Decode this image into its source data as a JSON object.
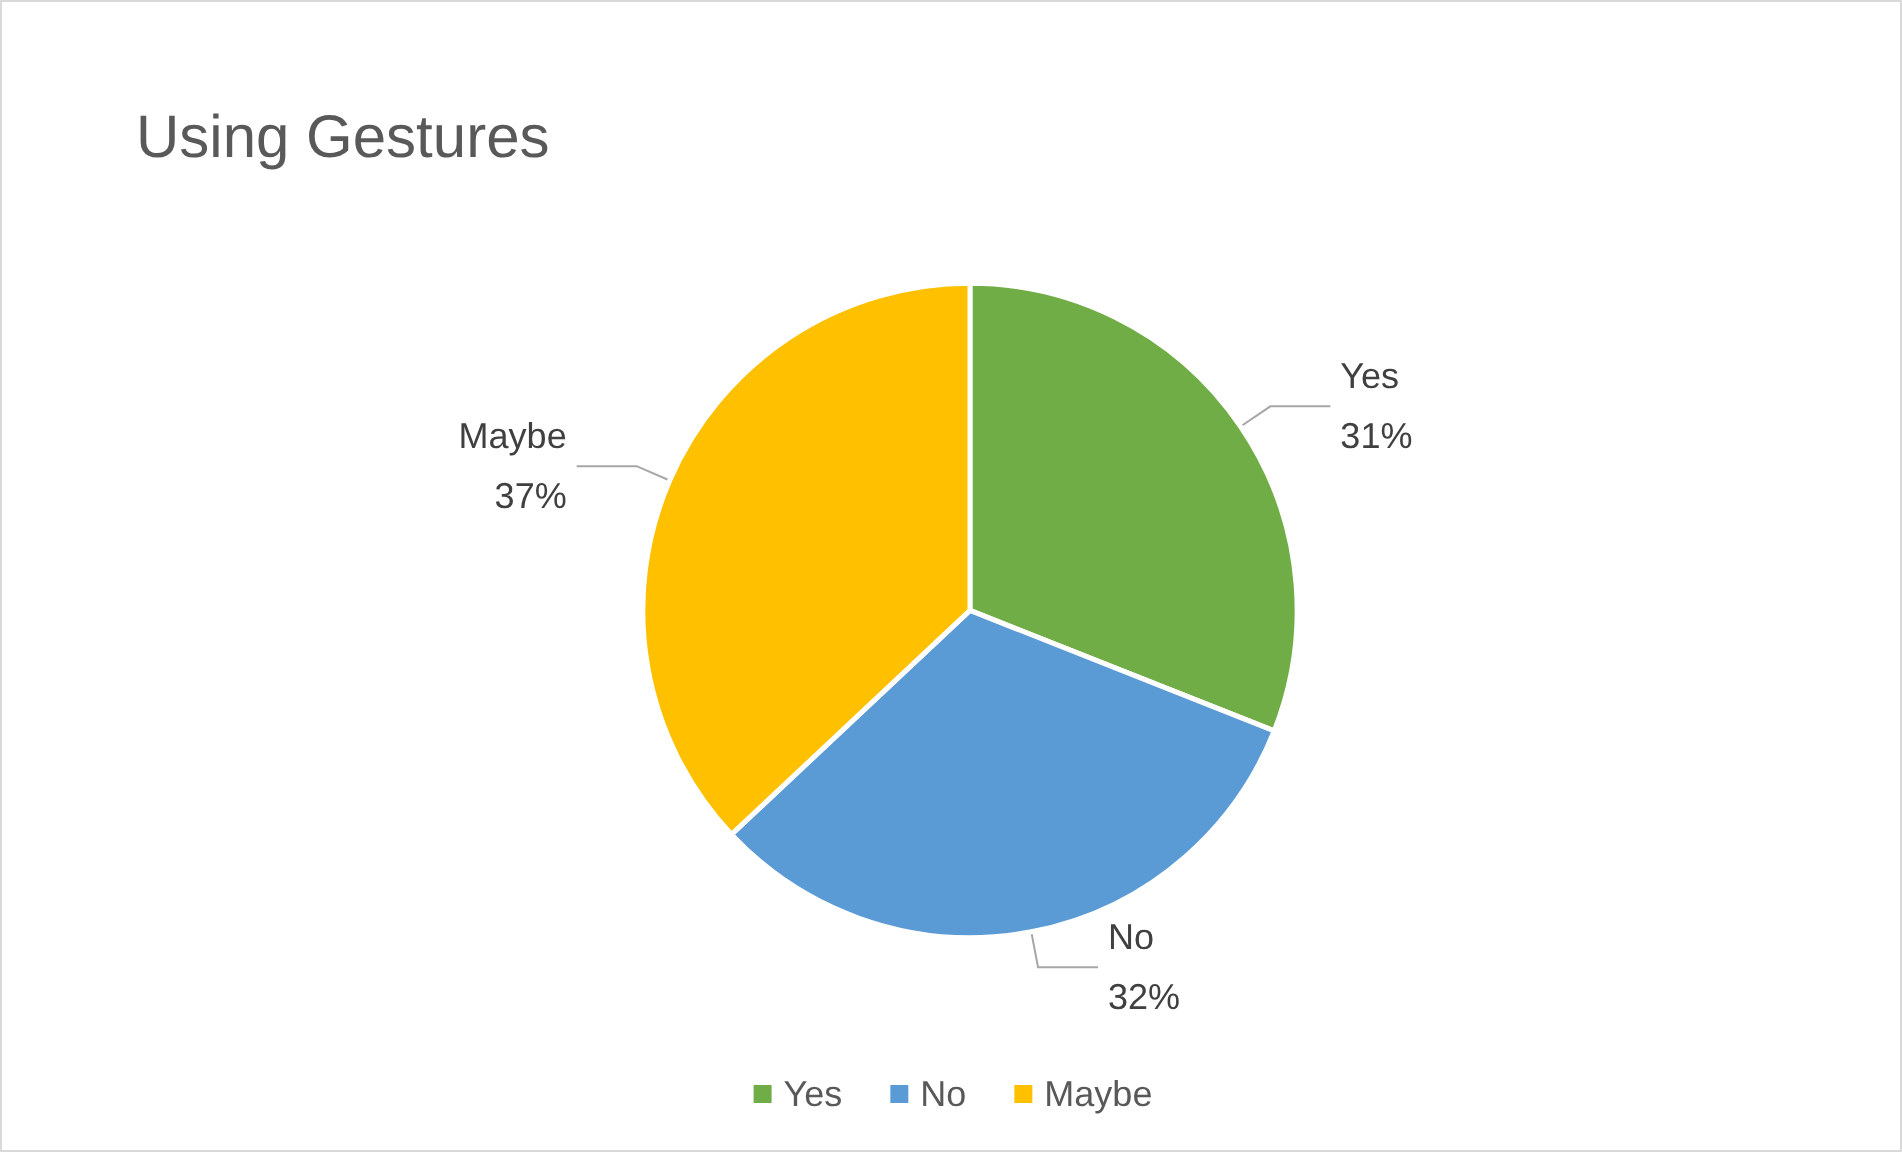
{
  "chart_data": {
    "type": "pie",
    "title": "Using Gestures",
    "categories": [
      "Yes",
      "No",
      "Maybe"
    ],
    "values": [
      31,
      32,
      37
    ],
    "value_labels": [
      "31%",
      "32%",
      "37%"
    ],
    "colors": [
      "#70ad47",
      "#5b9bd5",
      "#ffc000"
    ],
    "legend": "bottom"
  }
}
